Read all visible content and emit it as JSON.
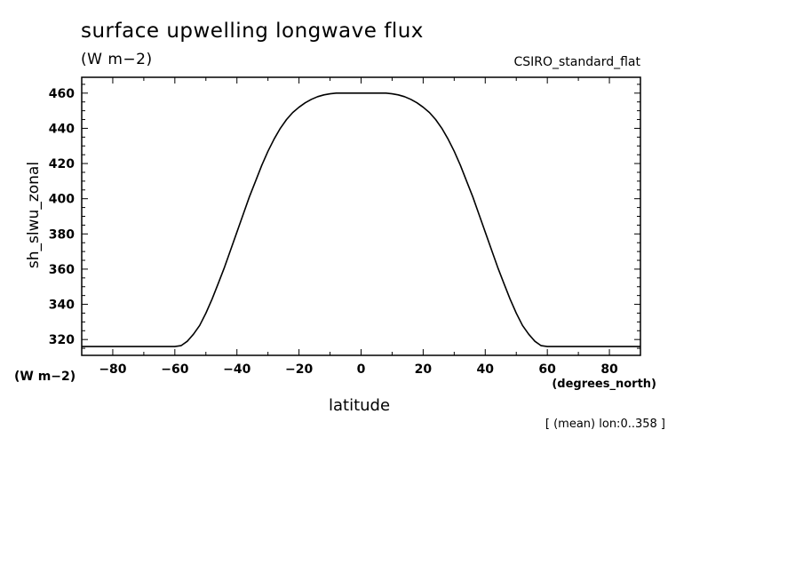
{
  "title": "surface upwelling longwave flux",
  "units": "(W m−2)",
  "model": "CSIRO_standard_flat",
  "units_lower": "(W m−2)",
  "note": "[ (mean) lon:0..358 ]",
  "chart_data": {
    "type": "line",
    "xlabel": "latitude",
    "xunits": "(degrees_north)",
    "ylabel": "sh_slwu_zonal",
    "xlim": [
      -90,
      90
    ],
    "ylim": [
      311,
      469
    ],
    "xticks": [
      -80,
      -60,
      -40,
      -20,
      0,
      20,
      40,
      60,
      80
    ],
    "yticks": [
      320,
      340,
      360,
      380,
      400,
      420,
      440,
      460
    ],
    "series": [
      {
        "x": [
          -90,
          -80,
          -70,
          -60,
          -58,
          -56,
          -54,
          -52,
          -50,
          -48,
          -46,
          -44,
          -42,
          -40,
          -38,
          -36,
          -34,
          -32,
          -30,
          -28,
          -26,
          -24,
          -22,
          -20,
          -18,
          -16,
          -14,
          -12,
          -10,
          -8,
          -6,
          -4,
          -2,
          0,
          2,
          4,
          6,
          8,
          10,
          12,
          14,
          16,
          18,
          20,
          22,
          24,
          26,
          28,
          30,
          32,
          34,
          36,
          38,
          40,
          42,
          44,
          46,
          48,
          50,
          52,
          54,
          56,
          58,
          60,
          70,
          80,
          90
        ],
        "y": [
          316,
          316,
          316,
          316,
          316.5,
          319,
          323,
          328,
          335,
          343,
          352,
          361,
          371,
          381,
          391,
          401,
          410,
          419,
          427,
          434,
          440,
          445,
          449,
          452,
          454.5,
          456.5,
          458,
          459,
          459.6,
          460,
          460,
          460,
          460,
          460,
          460,
          460,
          460,
          460,
          459.6,
          459,
          458,
          456.5,
          454.5,
          452,
          449,
          445,
          440,
          434,
          427,
          419,
          410,
          401,
          391,
          381,
          371,
          361,
          352,
          343,
          335,
          328,
          323,
          319,
          316.5,
          316,
          316,
          316,
          316
        ]
      }
    ]
  }
}
